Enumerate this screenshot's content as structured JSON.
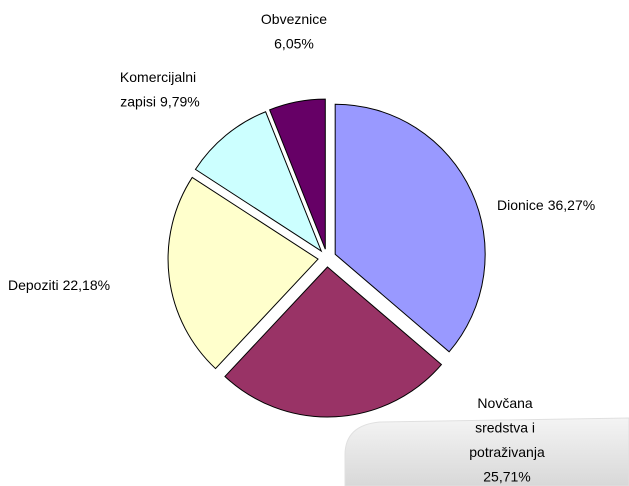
{
  "chart_data": {
    "type": "pie",
    "categories": [
      "Dionice",
      "Novčana sredstva i potraživanja",
      "Depoziti",
      "Komercijalni zapisi",
      "Obveznice"
    ],
    "values": [
      36.27,
      25.71,
      22.18,
      9.79,
      6.05
    ],
    "value_labels": [
      "36,27%",
      "25,71%",
      "22,18%",
      "9,79%",
      "6,05%"
    ],
    "colors": [
      "#9999ff",
      "#993366",
      "#ffffcc",
      "#ccffff",
      "#660066"
    ]
  }
}
